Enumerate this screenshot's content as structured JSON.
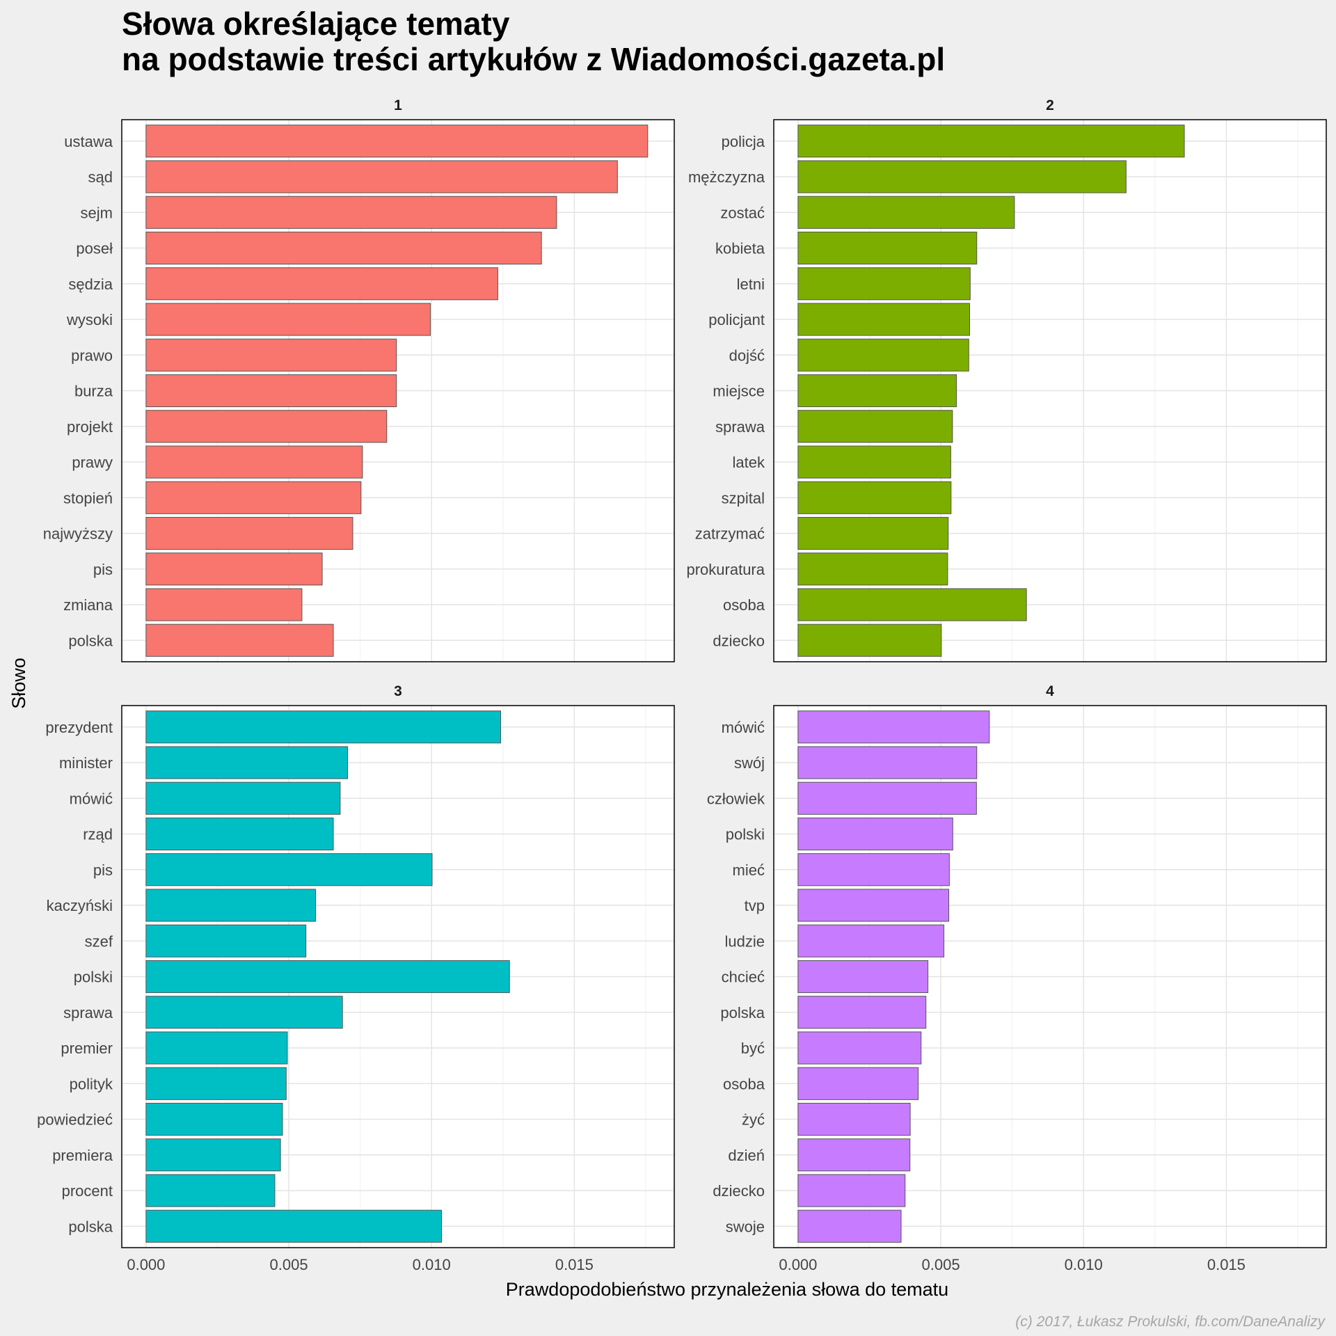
{
  "chart_data": {
    "type": "bar",
    "orientation": "horizontal",
    "facet_layout": "2x2 grid, shared x-axis range",
    "title": "Słowa określające tematy\nna podstawie treści artykułów z Wiadomości.gazeta.pl",
    "xlabel": "Prawdopodobieństwo przynależenia słowa do tematu",
    "ylabel": "Słowo",
    "xlim": [
      -0.00085,
      0.0185
    ],
    "x_ticks": [
      "0.000",
      "0.005",
      "0.010",
      "0.015"
    ],
    "grid": true,
    "legend": "none",
    "caption": "(c) 2017, Łukasz Prokulski, fb.com/DaneAnalizy",
    "panels": [
      {
        "label": "1",
        "color": "#F8766D",
        "categories": [
          "ustawa",
          "sąd",
          "sejm",
          "poseł",
          "sędzia",
          "wysoki",
          "prawo",
          "burza",
          "projekt",
          "prawy",
          "stopień",
          "najwyższy",
          "pis",
          "zmiana",
          "polska"
        ],
        "values": [
          0.01757,
          0.01651,
          0.01438,
          0.01385,
          0.01232,
          0.00996,
          0.00877,
          0.00877,
          0.00843,
          0.00758,
          0.00753,
          0.00724,
          0.00617,
          0.00546,
          0.00656
        ]
      },
      {
        "label": "2",
        "color": "#7CAE00",
        "categories": [
          "policja",
          "mężczyzna",
          "zostać",
          "kobieta",
          "letni",
          "policjant",
          "dojść",
          "miejsce",
          "sprawa",
          "latek",
          "szpital",
          "zatrzymać",
          "prokuratura",
          "osoba",
          "dziecko"
        ],
        "values": [
          0.01353,
          0.01149,
          0.00758,
          0.00626,
          0.00603,
          0.00601,
          0.00598,
          0.00555,
          0.00541,
          0.00535,
          0.00536,
          0.00526,
          0.00524,
          0.008,
          0.00502
        ]
      },
      {
        "label": "3",
        "color": "#00BFC4",
        "categories": [
          "prezydent",
          "minister",
          "mówić",
          "rząd",
          "pis",
          "kaczyński",
          "szef",
          "polski",
          "sprawa",
          "premier",
          "polityk",
          "powiedzieć",
          "premiera",
          "procent",
          "polska"
        ],
        "values": [
          0.01242,
          0.00706,
          0.0068,
          0.00656,
          0.01002,
          0.00594,
          0.0056,
          0.01273,
          0.00688,
          0.00495,
          0.00491,
          0.00478,
          0.00471,
          0.00451,
          0.01035
        ]
      },
      {
        "label": "4",
        "color": "#C77CFF",
        "categories": [
          "mówić",
          "swój",
          "człowiek",
          "polski",
          "mieć",
          "tvp",
          "ludzie",
          "chcieć",
          "polska",
          "być",
          "osoba",
          "żyć",
          "dzień",
          "dziecko",
          "swoje"
        ],
        "values": [
          0.0067,
          0.00626,
          0.00625,
          0.00542,
          0.0053,
          0.00528,
          0.00511,
          0.00455,
          0.00448,
          0.00431,
          0.00421,
          0.00393,
          0.00392,
          0.00375,
          0.00361
        ]
      }
    ]
  }
}
